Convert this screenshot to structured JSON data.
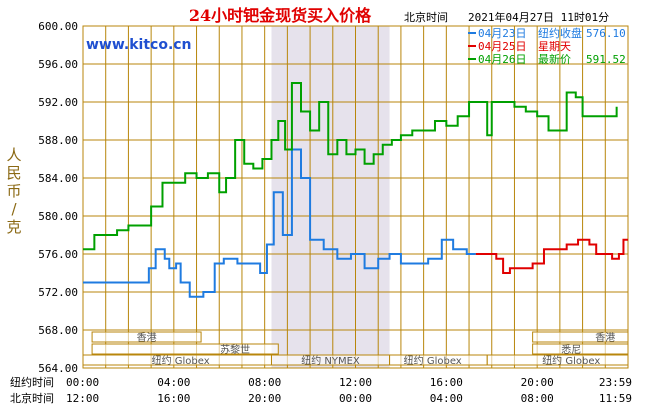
{
  "title": "24小时钯金现货买入价格",
  "header_right": {
    "timezone_label": "北京时间",
    "datetime": "2021年04月27日 11时01分"
  },
  "watermark": "www.kitco.cn",
  "ylabel": "人民币/克",
  "legend": [
    {
      "date": "04月23日",
      "label": "纽约收盘",
      "value": "576.10",
      "color": "#1f7be0"
    },
    {
      "date": "04月25日",
      "label": "星期天",
      "value": "",
      "color": "#e00000"
    },
    {
      "date": "04月26日",
      "label": "最新价",
      "value": "591.52",
      "color": "#00a000"
    }
  ],
  "market_bars": [
    {
      "label": "香港"
    },
    {
      "label": "苏黎世"
    },
    {
      "label": "纽约 Globex"
    },
    {
      "label": "纽约 NYMEX"
    },
    {
      "label": "纽约 Globex"
    },
    {
      "label": "香港"
    },
    {
      "label": "悉尼"
    },
    {
      "label": "纽约 Globex"
    }
  ],
  "xaxis": {
    "row1_label": "纽约时间",
    "row1_ticks": [
      "00:00",
      "04:00",
      "08:00",
      "12:00",
      "16:00",
      "20:00",
      "23:59"
    ],
    "row2_label": "北京时间",
    "row2_ticks": [
      "12:00",
      "16:00",
      "20:00",
      "00:00",
      "04:00",
      "08:00",
      "11:59"
    ]
  },
  "colors": {
    "grid": "#b8860b",
    "shade": "#e6e2ec",
    "title": "#e00000",
    "watermark": "#1f4fd0"
  },
  "chart_data": {
    "type": "line",
    "title": "24小时钯金现货买入价格",
    "ylabel": "人民币/克",
    "ylim": [
      564,
      600
    ],
    "yticks": [
      564.0,
      568.0,
      572.0,
      576.0,
      580.0,
      584.0,
      588.0,
      592.0,
      596.0,
      600.0
    ],
    "xlim_hours": [
      0,
      24
    ],
    "series": [
      {
        "name": "04月23日",
        "color": "#1f7be0",
        "x": [
          0.0,
          2.4,
          2.9,
          3.2,
          3.6,
          3.8,
          4.1,
          4.3,
          4.7,
          5.3,
          5.8,
          6.2,
          6.8,
          7.3,
          7.8,
          8.1,
          8.4,
          8.8,
          9.2,
          9.6,
          10.0,
          10.6,
          11.2,
          11.8,
          12.4,
          13.0,
          13.5,
          14.0,
          14.6,
          15.2,
          15.8,
          16.3,
          16.9,
          17.3
        ],
        "y": [
          573.0,
          573.0,
          574.5,
          576.5,
          575.5,
          574.5,
          575.0,
          573.0,
          571.5,
          572.0,
          575.0,
          575.5,
          575.0,
          575.0,
          574.0,
          577.0,
          582.5,
          578.0,
          587.0,
          584.0,
          577.5,
          576.5,
          575.5,
          576.0,
          574.5,
          575.5,
          576.0,
          575.0,
          575.0,
          575.5,
          577.5,
          576.5,
          576.0,
          576.0
        ]
      },
      {
        "name": "04月25日",
        "color": "#e00000",
        "x": [
          17.3,
          17.8,
          18.2,
          18.5,
          18.8,
          19.3,
          19.8,
          20.3,
          20.8,
          21.3,
          21.8,
          22.3,
          22.6,
          22.9,
          23.3,
          23.6,
          23.8,
          24.0
        ],
        "y": [
          576.0,
          576.0,
          575.5,
          574.0,
          574.5,
          574.5,
          575.0,
          576.5,
          576.5,
          577.0,
          577.5,
          577.0,
          576.0,
          576.0,
          575.5,
          576.0,
          577.5,
          577.5
        ]
      },
      {
        "name": "04月26日",
        "color": "#00a000",
        "x": [
          0.0,
          0.5,
          1.0,
          1.5,
          2.0,
          2.5,
          3.0,
          3.5,
          4.0,
          4.5,
          5.0,
          5.5,
          6.0,
          6.3,
          6.7,
          7.1,
          7.5,
          7.9,
          8.3,
          8.6,
          8.9,
          9.2,
          9.6,
          10.0,
          10.4,
          10.8,
          11.2,
          11.6,
          12.0,
          12.4,
          12.8,
          13.2,
          13.6,
          14.0,
          14.5,
          15.0,
          15.5,
          16.0,
          16.5,
          17.0,
          17.5,
          17.8,
          18.0,
          18.5,
          19.0,
          19.5,
          20.0,
          20.5,
          21.0,
          21.3,
          21.7,
          22.0,
          22.5,
          23.0,
          23.5
        ],
        "y": [
          576.5,
          578.0,
          578.0,
          578.5,
          579.0,
          579.0,
          581.0,
          583.5,
          583.5,
          584.5,
          584.0,
          584.5,
          582.5,
          584.0,
          588.0,
          585.5,
          585.0,
          586.0,
          588.0,
          590.0,
          587.0,
          594.0,
          591.0,
          589.0,
          592.0,
          586.5,
          588.0,
          586.5,
          587.0,
          585.5,
          586.5,
          587.5,
          588.0,
          588.5,
          589.0,
          589.0,
          590.0,
          589.5,
          590.5,
          592.0,
          592.0,
          588.5,
          592.0,
          592.0,
          591.5,
          591.0,
          590.5,
          589.0,
          589.0,
          593.0,
          592.5,
          590.5,
          590.5,
          590.5,
          591.5
        ]
      }
    ]
  }
}
